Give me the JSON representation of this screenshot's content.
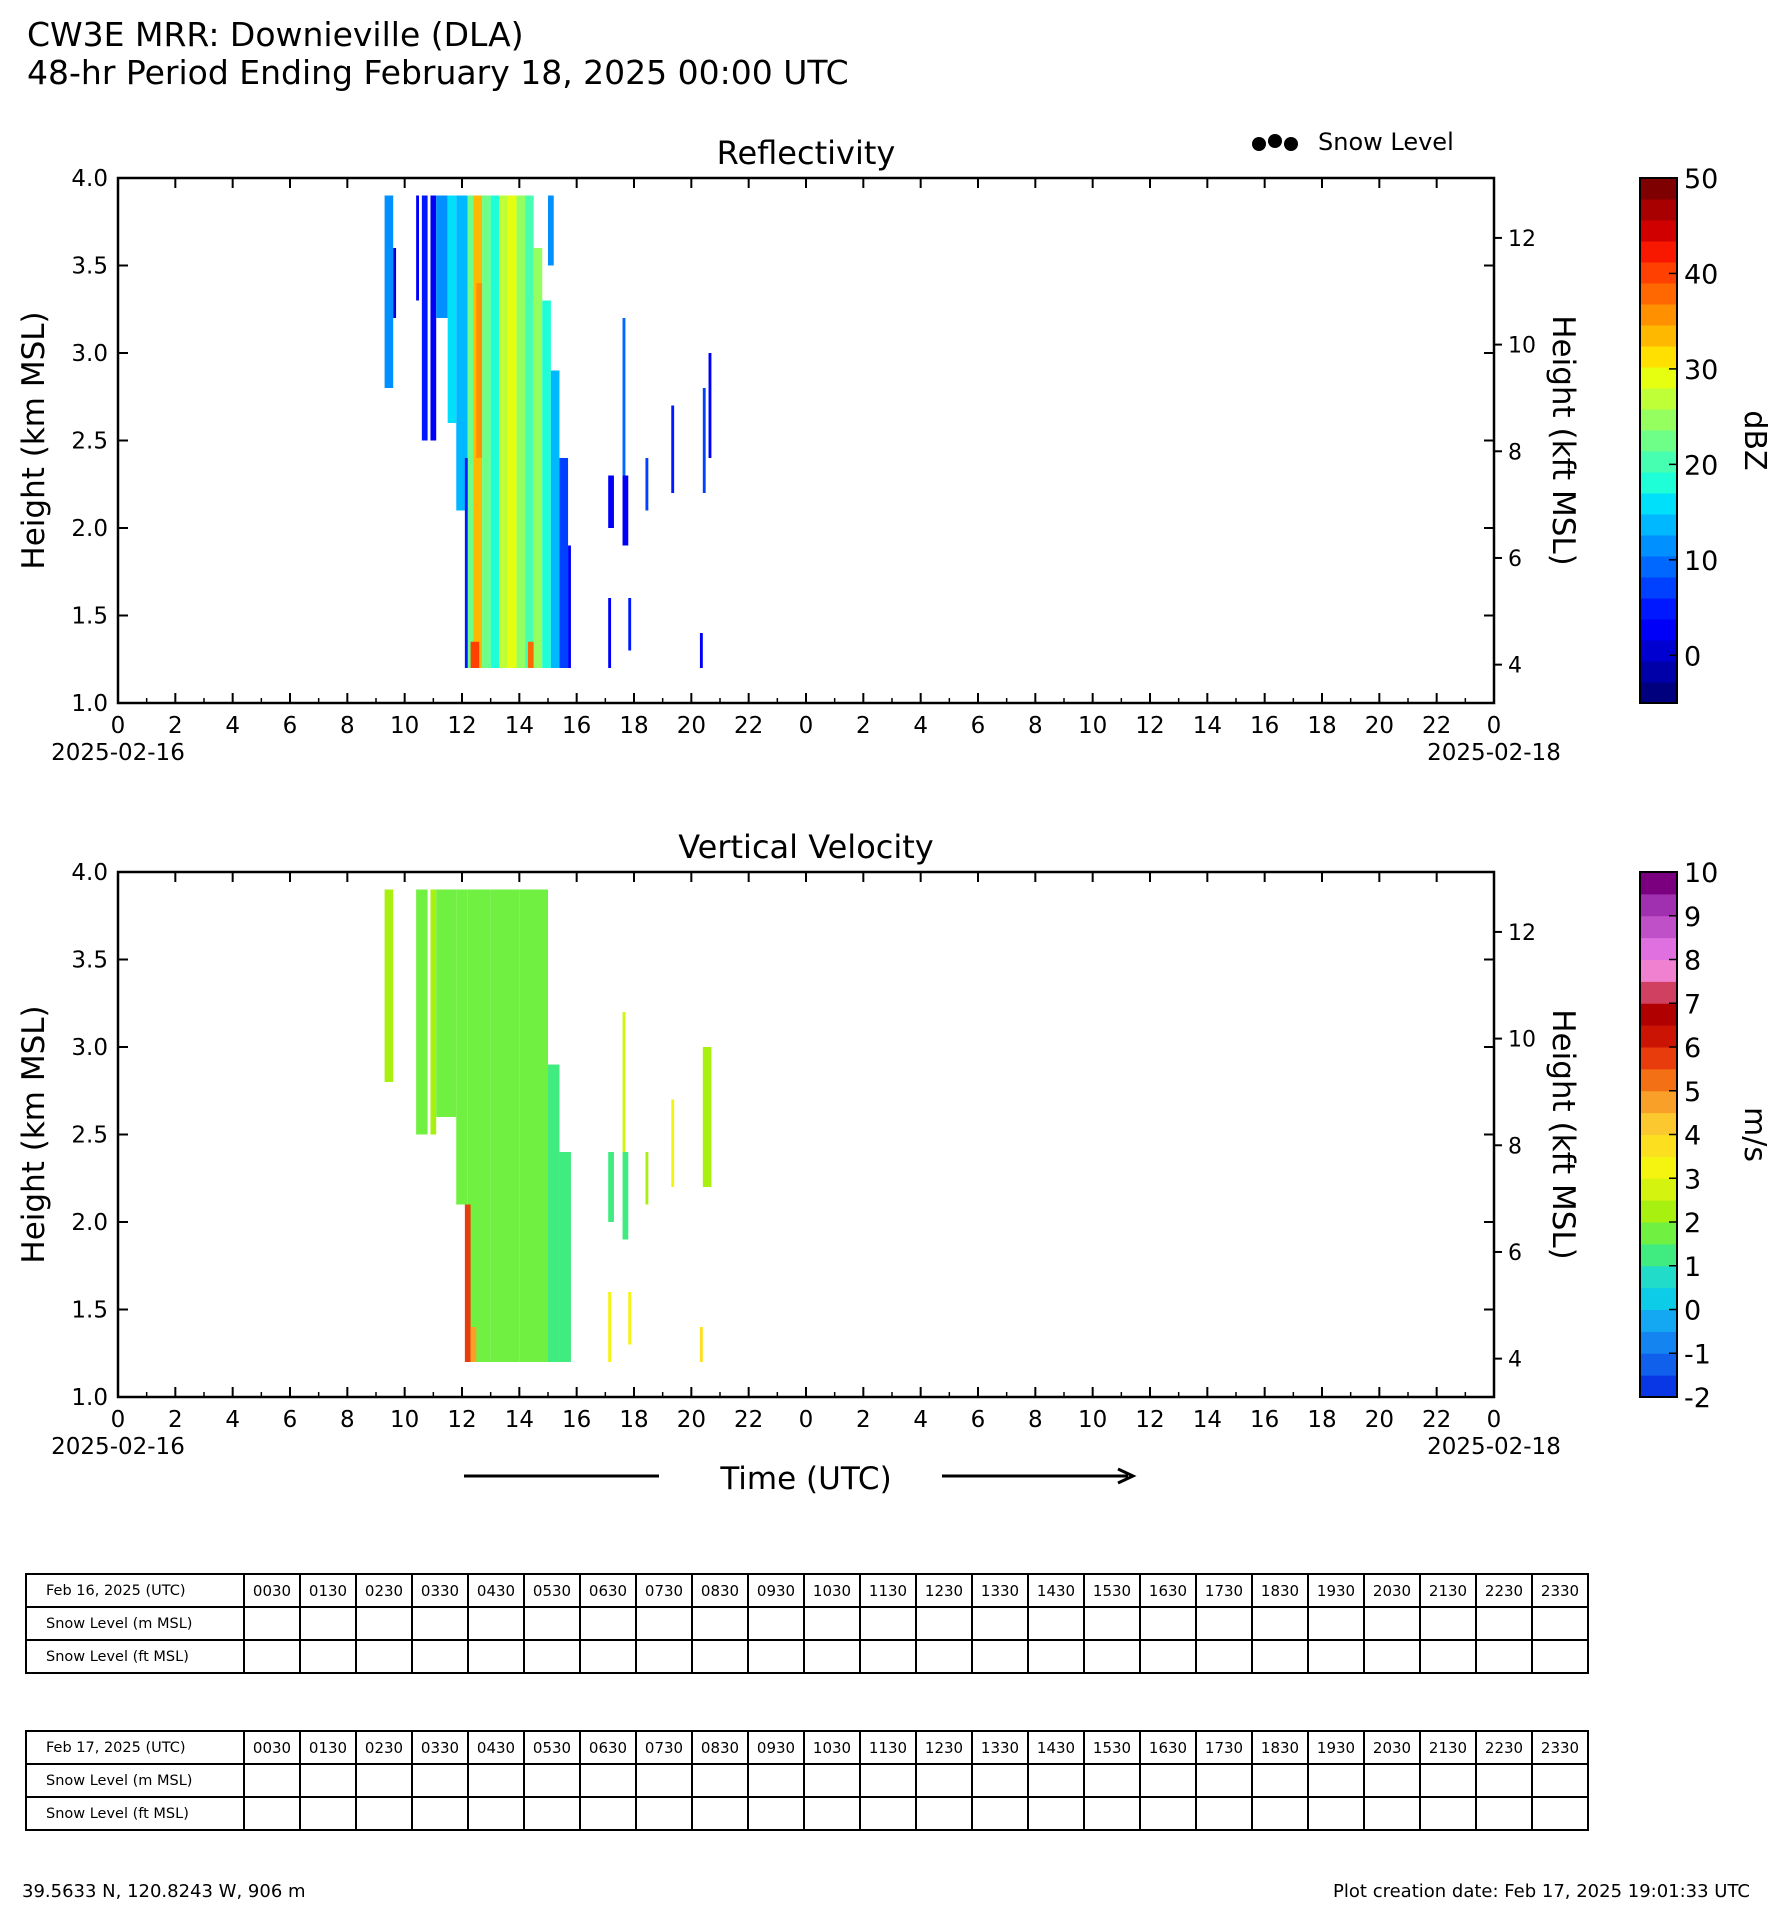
{
  "header": {
    "title_line1": "CW3E MRR: Downieville (DLA)",
    "title_line2": "48-hr Period Ending February 18, 2025 00:00 UTC"
  },
  "legend": {
    "snow_level_label": "Snow Level",
    "snow_level_marker": "●●●"
  },
  "chart_data": [
    {
      "id": "reflectivity",
      "type": "heatmap",
      "title": "Reflectivity",
      "ylabel": "Height (km MSL)",
      "ylabel_right": "Height (kft MSL)",
      "ylim": [
        1.0,
        4.0
      ],
      "yticks": [
        1.0,
        1.5,
        2.0,
        2.5,
        3.0,
        3.5,
        4.0
      ],
      "yticks_right": [
        4,
        6,
        8,
        10,
        12
      ],
      "xlim_hours": [
        0,
        48
      ],
      "xticklabels": [
        "0",
        "2",
        "4",
        "6",
        "8",
        "10",
        "12",
        "14",
        "16",
        "18",
        "20",
        "22",
        "0",
        "2",
        "4",
        "6",
        "8",
        "10",
        "12",
        "14",
        "16",
        "18",
        "20",
        "22",
        "0"
      ],
      "date_start": "2025-02-16",
      "date_end": "2025-02-18",
      "colorbar": {
        "label": "dBZ",
        "min": -5,
        "max": 50,
        "ticks": [
          0,
          10,
          20,
          30,
          40,
          50
        ],
        "colors": [
          "#00007f",
          "#0000a8",
          "#0000d0",
          "#0000f8",
          "#0018ff",
          "#0040ff",
          "#0068ff",
          "#0090ff",
          "#00b8ff",
          "#00e0fa",
          "#1effd8",
          "#46ffb0",
          "#6eff88",
          "#96ff60",
          "#beff38",
          "#e6ff10",
          "#ffe000",
          "#ffb800",
          "#ff9000",
          "#ff6800",
          "#ff4000",
          "#f81800",
          "#d00000",
          "#a80000",
          "#7f0000"
        ]
      },
      "segments": [
        {
          "t0": 9.3,
          "t1": 9.6,
          "z0": 2.8,
          "z1": 3.9,
          "dbz": 12
        },
        {
          "t0": 9.6,
          "t1": 9.7,
          "z0": 3.2,
          "z1": 3.6,
          "dbz": 0
        },
        {
          "t0": 10.4,
          "t1": 10.5,
          "z0": 3.3,
          "z1": 3.9,
          "dbz": 2
        },
        {
          "t0": 10.6,
          "t1": 10.8,
          "z0": 2.5,
          "z1": 3.9,
          "dbz": 5
        },
        {
          "t0": 10.9,
          "t1": 11.1,
          "z0": 2.5,
          "z1": 3.9,
          "dbz": 3
        },
        {
          "t0": 11.1,
          "t1": 11.5,
          "z0": 3.2,
          "z1": 3.9,
          "dbz": 12
        },
        {
          "t0": 11.5,
          "t1": 11.8,
          "z0": 2.6,
          "z1": 3.9,
          "dbz": 16
        },
        {
          "t0": 11.8,
          "t1": 12.2,
          "z0": 2.1,
          "z1": 3.9,
          "dbz": 14
        },
        {
          "t0": 12.1,
          "t1": 12.3,
          "z0": 1.2,
          "z1": 2.4,
          "dbz": 4
        },
        {
          "t0": 12.2,
          "t1": 12.4,
          "z0": 1.2,
          "z1": 3.9,
          "dbz": 22
        },
        {
          "t0": 12.4,
          "t1": 12.7,
          "z0": 1.2,
          "z1": 3.9,
          "dbz": 33
        },
        {
          "t0": 12.7,
          "t1": 13.0,
          "z0": 1.2,
          "z1": 3.9,
          "dbz": 22
        },
        {
          "t0": 13.0,
          "t1": 13.3,
          "z0": 1.2,
          "z1": 3.9,
          "dbz": 18
        },
        {
          "t0": 13.3,
          "t1": 13.6,
          "z0": 1.2,
          "z1": 3.9,
          "dbz": 27
        },
        {
          "t0": 13.6,
          "t1": 13.9,
          "z0": 1.2,
          "z1": 3.9,
          "dbz": 28
        },
        {
          "t0": 13.9,
          "t1": 14.2,
          "z0": 1.2,
          "z1": 3.9,
          "dbz": 24
        },
        {
          "t0": 14.2,
          "t1": 14.5,
          "z0": 1.2,
          "z1": 3.9,
          "dbz": 21
        },
        {
          "t0": 14.5,
          "t1": 14.8,
          "z0": 1.2,
          "z1": 3.6,
          "dbz": 25
        },
        {
          "t0": 14.8,
          "t1": 15.1,
          "z0": 1.2,
          "z1": 3.3,
          "dbz": 18
        },
        {
          "t0": 15.1,
          "t1": 15.4,
          "z0": 1.2,
          "z1": 2.9,
          "dbz": 14
        },
        {
          "t0": 15.4,
          "t1": 15.7,
          "z0": 1.2,
          "z1": 2.4,
          "dbz": 8
        },
        {
          "t0": 15.7,
          "t1": 15.8,
          "z0": 1.2,
          "z1": 1.9,
          "dbz": 2
        },
        {
          "t0": 15.0,
          "t1": 15.2,
          "z0": 3.5,
          "z1": 3.9,
          "dbz": 12
        },
        {
          "t0": 12.3,
          "t1": 12.6,
          "z0": 1.2,
          "z1": 1.35,
          "dbz": 40
        },
        {
          "t0": 14.3,
          "t1": 14.5,
          "z0": 1.2,
          "z1": 1.35,
          "dbz": 38
        },
        {
          "t0": 12.5,
          "t1": 12.7,
          "z0": 2.4,
          "z1": 3.4,
          "dbz": 36
        },
        {
          "t0": 17.1,
          "t1": 17.3,
          "z0": 2.0,
          "z1": 2.3,
          "dbz": 3
        },
        {
          "t0": 17.1,
          "t1": 17.2,
          "z0": 1.2,
          "z1": 1.6,
          "dbz": 2
        },
        {
          "t0": 17.6,
          "t1": 17.8,
          "z0": 1.9,
          "z1": 2.3,
          "dbz": 2
        },
        {
          "t0": 17.6,
          "t1": 17.7,
          "z0": 2.3,
          "z1": 3.2,
          "dbz": 10
        },
        {
          "t0": 17.8,
          "t1": 17.9,
          "z0": 1.3,
          "z1": 1.6,
          "dbz": 4
        },
        {
          "t0": 18.4,
          "t1": 18.5,
          "z0": 2.1,
          "z1": 2.4,
          "dbz": 6
        },
        {
          "t0": 19.3,
          "t1": 19.4,
          "z0": 2.2,
          "z1": 2.7,
          "dbz": 5
        },
        {
          "t0": 20.3,
          "t1": 20.4,
          "z0": 1.2,
          "z1": 1.4,
          "dbz": 3
        },
        {
          "t0": 20.4,
          "t1": 20.5,
          "z0": 2.2,
          "z1": 2.8,
          "dbz": 7
        },
        {
          "t0": 20.6,
          "t1": 20.7,
          "z0": 2.4,
          "z1": 3.0,
          "dbz": 3
        }
      ]
    },
    {
      "id": "vertical-velocity",
      "type": "heatmap",
      "title": "Vertical Velocity",
      "ylabel": "Height (km MSL)",
      "ylabel_right": "Height (kft MSL)",
      "ylim": [
        1.0,
        4.0
      ],
      "yticks": [
        1.0,
        1.5,
        2.0,
        2.5,
        3.0,
        3.5,
        4.0
      ],
      "yticks_right": [
        4,
        6,
        8,
        10,
        12
      ],
      "xlim_hours": [
        0,
        48
      ],
      "xticklabels": [
        "0",
        "2",
        "4",
        "6",
        "8",
        "10",
        "12",
        "14",
        "16",
        "18",
        "20",
        "22",
        "0",
        "2",
        "4",
        "6",
        "8",
        "10",
        "12",
        "14",
        "16",
        "18",
        "20",
        "22",
        "0"
      ],
      "date_start": "2025-02-16",
      "date_end": "2025-02-18",
      "xlabel": "Time (UTC)",
      "colorbar": {
        "label": "m/s",
        "min": -2,
        "max": 10,
        "ticks": [
          -2,
          -1,
          0,
          1,
          2,
          3,
          4,
          5,
          6,
          7,
          8,
          9,
          10
        ],
        "colors": [
          "#0a37e6",
          "#1060ec",
          "#1484f0",
          "#14a8f2",
          "#0ccce8",
          "#20dcc8",
          "#40ec80",
          "#70f040",
          "#a8f010",
          "#d4f410",
          "#f4f410",
          "#fce020",
          "#fcc830",
          "#f8a028",
          "#f47014",
          "#e83c0c",
          "#cc1404",
          "#b00000",
          "#d04060",
          "#f080d0",
          "#e070e0",
          "#c050c8",
          "#a030b0",
          "#7a0080"
        ]
      },
      "segments": [
        {
          "t0": 9.3,
          "t1": 9.6,
          "z0": 2.8,
          "z1": 3.9,
          "w": 2.0
        },
        {
          "t0": 10.4,
          "t1": 10.8,
          "z0": 2.5,
          "z1": 3.9,
          "w": 1.9
        },
        {
          "t0": 10.9,
          "t1": 11.1,
          "z0": 2.5,
          "z1": 3.9,
          "w": 2.2
        },
        {
          "t0": 11.1,
          "t1": 11.8,
          "z0": 2.6,
          "z1": 3.9,
          "w": 1.8
        },
        {
          "t0": 11.8,
          "t1": 12.2,
          "z0": 2.1,
          "z1": 3.9,
          "w": 1.7
        },
        {
          "t0": 12.2,
          "t1": 13.0,
          "z0": 1.2,
          "z1": 3.9,
          "w": 1.9
        },
        {
          "t0": 13.0,
          "t1": 14.0,
          "z0": 1.2,
          "z1": 3.9,
          "w": 1.6
        },
        {
          "t0": 14.0,
          "t1": 15.0,
          "z0": 1.2,
          "z1": 3.9,
          "w": 1.8
        },
        {
          "t0": 15.0,
          "t1": 15.4,
          "z0": 1.2,
          "z1": 2.9,
          "w": 1.3
        },
        {
          "t0": 15.4,
          "t1": 15.8,
          "z0": 1.2,
          "z1": 2.4,
          "w": 1.0
        },
        {
          "t0": 12.1,
          "t1": 12.3,
          "z0": 1.2,
          "z1": 2.1,
          "w": 5.5
        },
        {
          "t0": 12.3,
          "t1": 12.5,
          "z0": 1.2,
          "z1": 1.4,
          "w": 4.5
        },
        {
          "t0": 17.1,
          "t1": 17.3,
          "z0": 2.0,
          "z1": 2.4,
          "w": 1.4
        },
        {
          "t0": 17.1,
          "t1": 17.2,
          "z0": 1.2,
          "z1": 1.6,
          "w": 3.0
        },
        {
          "t0": 17.6,
          "t1": 17.8,
          "z0": 1.9,
          "z1": 2.4,
          "w": 1.2
        },
        {
          "t0": 17.6,
          "t1": 17.7,
          "z0": 2.4,
          "z1": 3.2,
          "w": 2.8
        },
        {
          "t0": 17.8,
          "t1": 17.9,
          "z0": 1.3,
          "z1": 1.6,
          "w": 3.0
        },
        {
          "t0": 18.4,
          "t1": 18.5,
          "z0": 2.1,
          "z1": 2.4,
          "w": 2.2
        },
        {
          "t0": 19.3,
          "t1": 19.4,
          "z0": 2.2,
          "z1": 2.7,
          "w": 3.2
        },
        {
          "t0": 20.3,
          "t1": 20.4,
          "z0": 1.2,
          "z1": 1.4,
          "w": 3.5
        },
        {
          "t0": 20.4,
          "t1": 20.7,
          "z0": 2.2,
          "z1": 3.0,
          "w": 2.0
        }
      ]
    }
  ],
  "snow_tables": [
    {
      "date_label": "Feb 16, 2025 (UTC)",
      "row1_label": "Snow Level (m MSL)",
      "row2_label": "Snow Level (ft MSL)"
    },
    {
      "date_label": "Feb 17, 2025 (UTC)",
      "row1_label": "Snow Level (m MSL)",
      "row2_label": "Snow Level (ft MSL)"
    }
  ],
  "snow_times": [
    "0030",
    "0130",
    "0230",
    "0330",
    "0430",
    "0530",
    "0630",
    "0730",
    "0830",
    "0930",
    "1030",
    "1130",
    "1230",
    "1330",
    "1430",
    "1530",
    "1630",
    "1730",
    "1830",
    "1930",
    "2030",
    "2130",
    "2230",
    "2330"
  ],
  "footer": {
    "location": "39.5633 N, 120.8243 W, 906 m",
    "creation": "Plot creation date: Feb 17, 2025 19:01:33 UTC"
  }
}
